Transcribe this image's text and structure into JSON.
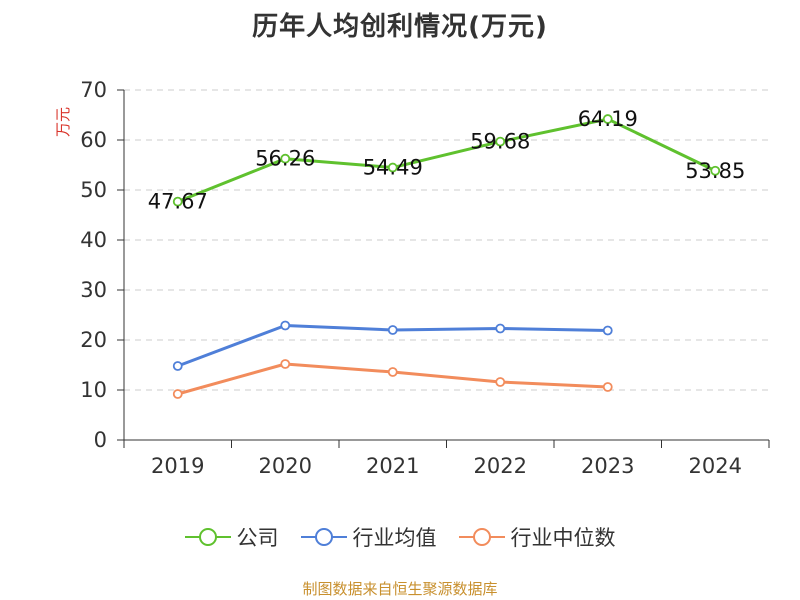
{
  "title": "历年人均创利情况(万元)",
  "source": "制图数据来自恒生聚源数据库",
  "colors": {
    "company": "#5fc12e",
    "industry_avg": "#4f7fd8",
    "industry_median": "#f28c5c",
    "axis": "#333333",
    "grid": "#cccccc",
    "ylabel": "#d9342b"
  },
  "chart_data": {
    "type": "line",
    "title": "历年人均创利情况(万元)",
    "ylabel": "万元",
    "xlabel": "",
    "categories": [
      "2019",
      "2020",
      "2021",
      "2022",
      "2023",
      "2024"
    ],
    "ylim": [
      0,
      70
    ],
    "yticks": [
      0,
      10,
      20,
      30,
      40,
      50,
      60,
      70
    ],
    "grid": "horizontal dashed",
    "legend_position": "bottom",
    "series": [
      {
        "name": "公司",
        "key": "company",
        "values": [
          47.67,
          56.26,
          54.49,
          59.68,
          64.19,
          53.85
        ],
        "labels": [
          "47.67",
          "56.26",
          "54.49",
          "59.68",
          "64.19",
          "53.85"
        ]
      },
      {
        "name": "行业均值",
        "key": "industry_avg",
        "values": [
          14.8,
          22.9,
          22.0,
          22.3,
          21.9,
          null
        ]
      },
      {
        "name": "行业中位数",
        "key": "industry_median",
        "values": [
          9.2,
          15.2,
          13.6,
          11.6,
          10.6,
          null
        ]
      }
    ]
  }
}
